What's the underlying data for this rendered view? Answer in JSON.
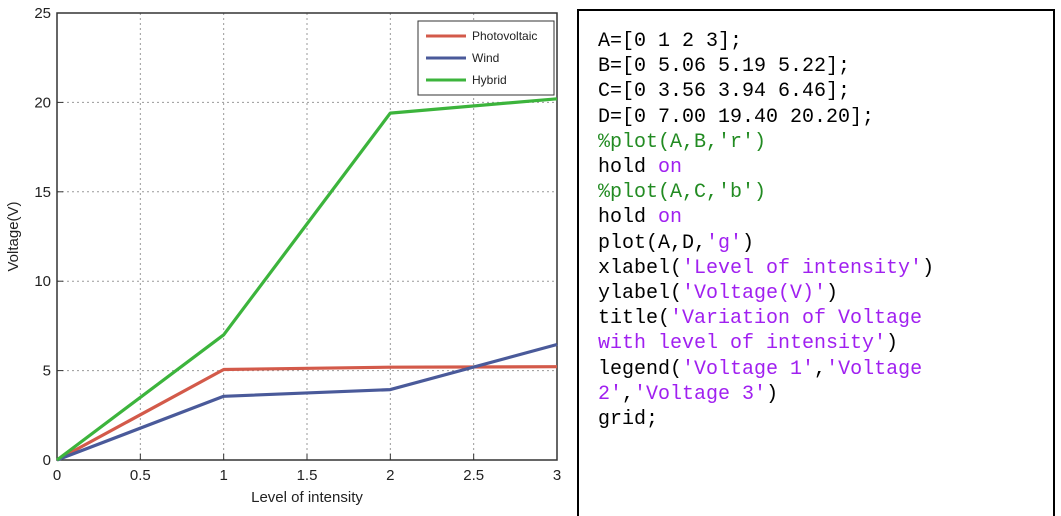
{
  "chart_data": {
    "type": "line",
    "title": "",
    "xlabel": "Level of intensity",
    "ylabel": "Voltage(V)",
    "xlim": [
      0,
      3
    ],
    "ylim": [
      0,
      25
    ],
    "grid": true,
    "legend_position": "top-right",
    "x_ticks": [
      "0",
      "0.5",
      "1",
      "1.5",
      "2",
      "2.5",
      "3"
    ],
    "y_ticks": [
      "0",
      "5",
      "10",
      "15",
      "20",
      "25"
    ],
    "x": [
      0,
      1,
      2,
      3
    ],
    "series": [
      {
        "name": "Photovoltaic",
        "color": "#d35a4a",
        "values": [
          0,
          5.06,
          5.19,
          5.22
        ]
      },
      {
        "name": "Wind",
        "color": "#4a5a9a",
        "values": [
          0,
          3.56,
          3.94,
          6.46
        ]
      },
      {
        "name": "Hybrid",
        "color": "#3cb43c",
        "values": [
          0,
          7.0,
          19.4,
          20.2
        ]
      }
    ]
  },
  "code": {
    "lines": [
      {
        "kind": "plain",
        "text": "A=[0 1 2 3];"
      },
      {
        "kind": "plain",
        "text": "B=[0 5.06 5.19 5.22];"
      },
      {
        "kind": "plain",
        "text": "C=[0 3.56 3.94 6.46];"
      },
      {
        "kind": "plain",
        "text": "D=[0 7.00 19.40 20.20];"
      },
      {
        "kind": "comment",
        "text": "%plot(A,B,'r')"
      },
      {
        "kind": "kw",
        "pre": "hold ",
        "kw": "on"
      },
      {
        "kind": "comment",
        "text": "%plot(A,C,'b')"
      },
      {
        "kind": "kw",
        "pre": "hold ",
        "kw": "on"
      },
      {
        "kind": "str",
        "pre": "plot(A,D,",
        "str": "'g'",
        "post": ")"
      },
      {
        "kind": "str",
        "pre": "xlabel(",
        "str": "'Level of intensity'",
        "post": ")"
      },
      {
        "kind": "str",
        "pre": "ylabel(",
        "str": "'Voltage(V)'",
        "post": ")"
      },
      {
        "kind": "str",
        "pre": "title(",
        "str": "'Variation of Voltage",
        "post": ""
      },
      {
        "kind": "str",
        "pre": "",
        "str": "with level of intensity'",
        "post": ")"
      },
      {
        "kind": "str",
        "pre": "legend(",
        "str": "'Voltage 1'",
        "post": ",",
        "str2": "'Voltage",
        "post2": ""
      },
      {
        "kind": "str",
        "pre": "",
        "str": "2'",
        "post": ",",
        "str2": "'Voltage 3'",
        "post2": ")"
      },
      {
        "kind": "plain",
        "text": "grid;"
      }
    ]
  }
}
